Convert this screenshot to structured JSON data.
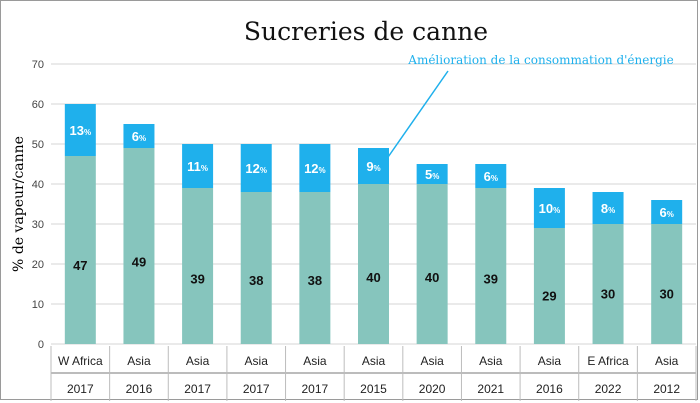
{
  "chart_data": {
    "type": "bar",
    "stacked": true,
    "title": "Sucreries de canne",
    "ylabel": "% de vapeur/canne",
    "ylim": [
      0,
      70
    ],
    "yticks": [
      0,
      10,
      20,
      30,
      40,
      50,
      60,
      70
    ],
    "grid": true,
    "categories": [
      {
        "region": "W Africa",
        "year": "2017"
      },
      {
        "region": "Asia",
        "year": "2016"
      },
      {
        "region": "Asia",
        "year": "2017"
      },
      {
        "region": "Asia",
        "year": "2017"
      },
      {
        "region": "Asia",
        "year": "2017"
      },
      {
        "region": "Asia",
        "year": "2015"
      },
      {
        "region": "Asia",
        "year": "2020"
      },
      {
        "region": "Asia",
        "year": "2021"
      },
      {
        "region": "Asia",
        "year": "2016"
      },
      {
        "region": "E Africa",
        "year": "2022"
      },
      {
        "region": "Asia",
        "year": "2012"
      }
    ],
    "series": [
      {
        "values": [
          47,
          49,
          39,
          38,
          38,
          40,
          40,
          39,
          29,
          30,
          30
        ],
        "labels": [
          "47",
          "49",
          "39",
          "38",
          "38",
          "40",
          "40",
          "39",
          "29",
          "30",
          "30"
        ],
        "color": "#86c5bd"
      },
      {
        "values": [
          13,
          6,
          11,
          12,
          12,
          9,
          5,
          6,
          10,
          8,
          6
        ],
        "labels": [
          "13",
          "6",
          "11",
          "12",
          "12",
          "9",
          "5",
          "6",
          "10",
          "8",
          "6"
        ],
        "label_suffix": "%",
        "color": "#1fb0ec"
      }
    ],
    "annotation": {
      "text": "Amélioration de la consommation d'énergie",
      "color": "#1fb0ec",
      "target_index": 5
    }
  }
}
